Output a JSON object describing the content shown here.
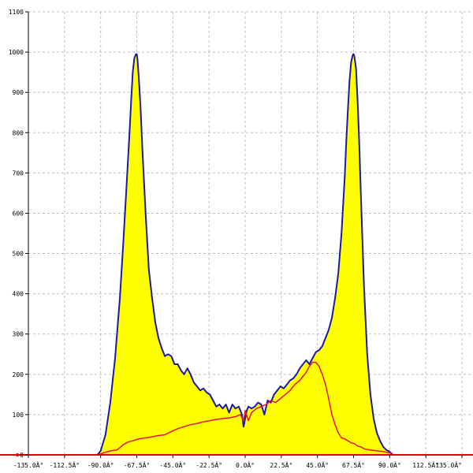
{
  "chart_data": {
    "type": "area",
    "title": "",
    "xlabel": "",
    "ylabel": "",
    "xlim": [
      -135,
      135
    ],
    "ylim": [
      0,
      1100
    ],
    "grid": true,
    "legend": "none",
    "x_ticks": [
      -135,
      -112.5,
      -90,
      -67.5,
      -45,
      -22.5,
      0,
      22.5,
      45,
      67.5,
      90,
      112.5,
      135
    ],
    "x_tick_labels": [
      "-135.0Â°",
      "-112.5Â°",
      "-90.0Â°",
      "-67.5Â°",
      "-45.0Â°",
      "-22.5Â°",
      "0.0Â°",
      "22.5Â°",
      "45.0Â°",
      "67.5Â°",
      "90.0Â°",
      "112.5Â°",
      "135.0Â°"
    ],
    "y_ticks": [
      0,
      100,
      200,
      300,
      400,
      500,
      600,
      700,
      800,
      900,
      1000,
      1100
    ],
    "y_tick_labels": [
      "0",
      "100",
      "200",
      "300",
      "400",
      "500",
      "600",
      "700",
      "800",
      "900",
      "1000",
      "1100"
    ],
    "colors": {
      "area_fill": "#ffff00",
      "area_line": "#1a1aa6",
      "red_series": "#e8142a",
      "baseline": "#e00000",
      "grid": "#bfbfbf",
      "axis": "#000000"
    },
    "series": [
      {
        "style": "filled-area",
        "x": [
          -92,
          -90,
          -87,
          -84,
          -81,
          -78,
          -76,
          -74,
          -72,
          -71,
          -70,
          -69,
          -68,
          -67.5,
          -67,
          -66,
          -65,
          -64,
          -62,
          -60,
          -58,
          -56,
          -54,
          -52,
          -50,
          -48,
          -46,
          -44,
          -42,
          -40,
          -38,
          -36,
          -34,
          -32,
          -30,
          -28,
          -26,
          -24,
          -22,
          -20,
          -18,
          -16,
          -14,
          -12,
          -10,
          -8,
          -6,
          -4,
          -2,
          -1,
          0,
          1,
          2,
          4,
          6,
          8,
          10,
          12,
          14,
          16,
          18,
          20,
          22,
          24,
          26,
          28,
          30,
          32,
          34,
          36,
          38,
          40,
          42,
          44,
          46,
          48,
          50,
          52,
          54,
          56,
          58,
          60,
          62,
          63,
          64,
          65,
          66,
          67,
          67.5,
          68,
          69,
          70,
          71,
          72,
          74,
          76,
          78,
          80,
          82,
          84,
          86,
          88,
          90,
          92
        ],
        "y": [
          0,
          10,
          50,
          130,
          240,
          390,
          520,
          660,
          800,
          880,
          950,
          985,
          995,
          995,
          980,
          920,
          850,
          760,
          600,
          460,
          390,
          330,
          290,
          265,
          245,
          250,
          245,
          225,
          225,
          210,
          200,
          215,
          200,
          180,
          170,
          160,
          165,
          155,
          150,
          135,
          120,
          125,
          115,
          125,
          105,
          125,
          115,
          120,
          100,
          70,
          90,
          110,
          120,
          115,
          120,
          130,
          125,
          100,
          135,
          130,
          150,
          160,
          170,
          165,
          175,
          185,
          190,
          200,
          215,
          225,
          235,
          225,
          240,
          255,
          260,
          270,
          290,
          310,
          340,
          390,
          450,
          550,
          690,
          780,
          860,
          930,
          975,
          993,
          995,
          990,
          960,
          880,
          780,
          650,
          420,
          250,
          150,
          90,
          55,
          35,
          20,
          12,
          8,
          0
        ]
      },
      {
        "style": "line",
        "x": [
          -92,
          -88,
          -84,
          -80,
          -78,
          -76,
          -73,
          -70,
          -66,
          -62,
          -58,
          -54,
          -50,
          -46,
          -42,
          -38,
          -34,
          -30,
          -26,
          -22,
          -18,
          -14,
          -10,
          -6,
          -3,
          -1,
          0,
          2,
          4,
          7,
          10,
          13,
          16,
          19,
          22,
          25,
          28,
          31,
          34,
          36,
          38,
          40,
          42,
          44,
          46,
          48,
          50,
          52,
          54,
          56,
          58,
          60,
          62,
          64,
          66,
          68,
          70,
          72,
          74,
          78,
          82,
          86,
          90,
          92
        ],
        "y": [
          0,
          5,
          10,
          12,
          18,
          25,
          32,
          35,
          40,
          42,
          45,
          48,
          50,
          58,
          65,
          70,
          75,
          78,
          82,
          85,
          88,
          90,
          92,
          95,
          100,
          85,
          110,
          85,
          105,
          115,
          120,
          125,
          135,
          130,
          140,
          150,
          160,
          175,
          185,
          195,
          205,
          220,
          230,
          230,
          220,
          200,
          175,
          140,
          100,
          75,
          55,
          42,
          40,
          35,
          30,
          28,
          22,
          20,
          15,
          12,
          10,
          8,
          5,
          0
        ]
      }
    ]
  }
}
